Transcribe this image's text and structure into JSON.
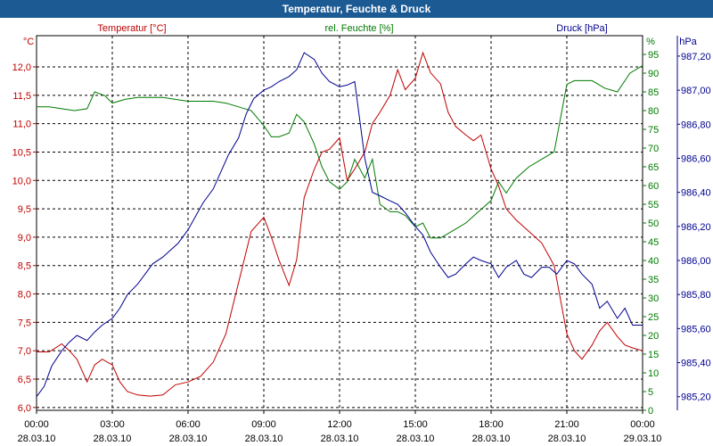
{
  "title": "Temperatur, Feuchte & Druck",
  "chart_data": {
    "type": "line",
    "x_ticks": [
      {
        "time": "00:00",
        "date": "28.03.10"
      },
      {
        "time": "03:00",
        "date": "28.03.10"
      },
      {
        "time": "06:00",
        "date": "28.03.10"
      },
      {
        "time": "09:00",
        "date": "28.03.10"
      },
      {
        "time": "12:00",
        "date": "28.03.10"
      },
      {
        "time": "15:00",
        "date": "28.03.10"
      },
      {
        "time": "18:00",
        "date": "28.03.10"
      },
      {
        "time": "21:00",
        "date": "28.03.10"
      },
      {
        "time": "00:00",
        "date": "29.03.10"
      }
    ],
    "axes": {
      "temperature": {
        "label": "Temperatur [°C]",
        "unit": "°C",
        "range": [
          5.95,
          12.55
        ],
        "ticks": [
          "6,0",
          "6,5",
          "7,0",
          "7,5",
          "8,0",
          "8,5",
          "9,0",
          "9,5",
          "10,0",
          "10,5",
          "11,0",
          "11,5",
          "12,0"
        ],
        "color": "#c00000"
      },
      "humidity": {
        "label": "rel. Feuchte [%]",
        "unit": "%",
        "range": [
          0,
          100
        ],
        "ticks": [
          "0",
          "5",
          "10",
          "15",
          "20",
          "25",
          "30",
          "35",
          "40",
          "45",
          "50",
          "55",
          "60",
          "65",
          "70",
          "75",
          "80",
          "85",
          "90",
          "95"
        ],
        "color": "#007a00"
      },
      "pressure": {
        "label": "Druck [hPa]",
        "unit": "hPa",
        "range": [
          985.12,
          987.32
        ],
        "ticks": [
          "985,20",
          "985,40",
          "985,60",
          "985,80",
          "986,00",
          "986,20",
          "986,40",
          "986,60",
          "986,80",
          "987,00",
          "987,20"
        ],
        "color": "#000090"
      }
    },
    "series": [
      {
        "name": "Temperatur [°C]",
        "axis": "temperature",
        "color": "#c00000",
        "hours": [
          0,
          0.5,
          1,
          1.3,
          1.6,
          2,
          2.3,
          2.6,
          3,
          3.3,
          3.6,
          4,
          4.5,
          5,
          5.5,
          6,
          6.5,
          7,
          7.5,
          8,
          8.5,
          9,
          9.3,
          9.6,
          10,
          10.3,
          10.6,
          11,
          11.3,
          11.6,
          12,
          12.3,
          12.6,
          13,
          13.3,
          13.6,
          14,
          14.3,
          14.6,
          15,
          15.3,
          15.6,
          16,
          16.3,
          16.6,
          17,
          17.3,
          17.6,
          18,
          18.3,
          18.6,
          19,
          19.5,
          20,
          20.5,
          21,
          21.3,
          21.6,
          22,
          22.3,
          22.6,
          23,
          23.3,
          23.6,
          24
        ],
        "values": [
          6.98,
          6.98,
          7.12,
          7.0,
          6.85,
          6.45,
          6.75,
          6.85,
          6.75,
          6.45,
          6.28,
          6.22,
          6.2,
          6.22,
          6.4,
          6.45,
          6.55,
          6.8,
          7.3,
          8.2,
          9.1,
          9.35,
          9.0,
          8.6,
          8.15,
          8.6,
          9.7,
          10.2,
          10.5,
          10.55,
          10.75,
          10.0,
          10.2,
          10.5,
          11.0,
          11.2,
          11.5,
          11.95,
          11.6,
          11.8,
          12.25,
          11.9,
          11.7,
          11.2,
          10.95,
          10.8,
          10.7,
          10.8,
          10.2,
          9.9,
          9.5,
          9.3,
          9.1,
          8.9,
          8.5,
          7.3,
          7.0,
          6.85,
          7.1,
          7.35,
          7.5,
          7.25,
          7.1,
          7.05,
          7.0
        ],
        "unit": "°C"
      },
      {
        "name": "rel. Feuchte [%]",
        "axis": "humidity",
        "color": "#007a00",
        "hours": [
          0,
          0.5,
          1,
          1.5,
          2,
          2.3,
          2.7,
          3,
          3.5,
          4,
          4.5,
          5,
          5.5,
          6,
          6.5,
          7,
          7.5,
          8,
          8.5,
          9,
          9.3,
          9.6,
          10,
          10.3,
          10.6,
          11,
          11.3,
          11.6,
          12,
          12.3,
          12.6,
          13,
          13.3,
          13.6,
          14,
          14.3,
          14.6,
          15,
          15.3,
          15.6,
          16,
          16.5,
          17,
          17.5,
          18,
          18.3,
          18.6,
          19,
          19.5,
          20,
          20.5,
          21,
          21.3,
          21.6,
          22,
          22.5,
          23,
          23.5,
          24
        ],
        "values": [
          81,
          81,
          80.5,
          80,
          80.5,
          85,
          84,
          82,
          83,
          83.5,
          83.5,
          83.5,
          83,
          82.5,
          82.5,
          82.5,
          82,
          81,
          80,
          76,
          73,
          73,
          74,
          79,
          77,
          71,
          65,
          61,
          59,
          61,
          67,
          62,
          67,
          55,
          53,
          53,
          52,
          49,
          50,
          46,
          46,
          48,
          50,
          53,
          56,
          61,
          58,
          62,
          65,
          67,
          69,
          87,
          88,
          88,
          88,
          86,
          85,
          90,
          92
        ],
        "unit": "%"
      },
      {
        "name": "Druck [hPa]",
        "axis": "pressure",
        "color": "#000090",
        "hours": [
          0,
          0.3,
          0.6,
          1,
          1.3,
          1.6,
          2,
          2.3,
          2.6,
          3,
          3.3,
          3.6,
          4,
          4.3,
          4.6,
          5,
          5.3,
          5.6,
          6,
          6.3,
          6.6,
          7,
          7.3,
          7.6,
          8,
          8.3,
          8.6,
          9,
          9.3,
          9.6,
          10,
          10.3,
          10.6,
          11,
          11.3,
          11.6,
          12,
          12.3,
          12.6,
          13,
          13.3,
          13.6,
          14,
          14.3,
          14.6,
          15,
          15.3,
          15.6,
          16,
          16.3,
          16.6,
          17,
          17.3,
          17.6,
          18,
          18.3,
          18.6,
          19,
          19.3,
          19.6,
          20,
          20.3,
          20.6,
          21,
          21.3,
          21.6,
          22,
          22.3,
          22.6,
          23,
          23.3,
          23.6,
          24
        ],
        "values": [
          985.2,
          985.26,
          985.38,
          985.47,
          985.52,
          985.56,
          985.53,
          985.58,
          985.62,
          985.66,
          985.72,
          985.8,
          985.86,
          985.92,
          985.98,
          986.02,
          986.06,
          986.1,
          986.18,
          986.26,
          986.34,
          986.42,
          986.52,
          986.62,
          986.72,
          986.86,
          986.95,
          987.0,
          987.02,
          987.05,
          987.08,
          987.12,
          987.22,
          987.18,
          987.1,
          987.05,
          987.02,
          987.03,
          987.05,
          986.6,
          986.4,
          986.38,
          986.35,
          986.33,
          986.28,
          986.2,
          986.15,
          986.05,
          985.96,
          985.9,
          985.92,
          985.98,
          986.02,
          986.0,
          985.98,
          985.9,
          985.96,
          986.0,
          985.92,
          985.9,
          985.96,
          985.96,
          985.92,
          986.0,
          985.98,
          985.92,
          985.86,
          985.72,
          985.76,
          985.66,
          985.72,
          985.62,
          985.62
        ],
        "unit": "hPa"
      }
    ],
    "grid": true
  }
}
